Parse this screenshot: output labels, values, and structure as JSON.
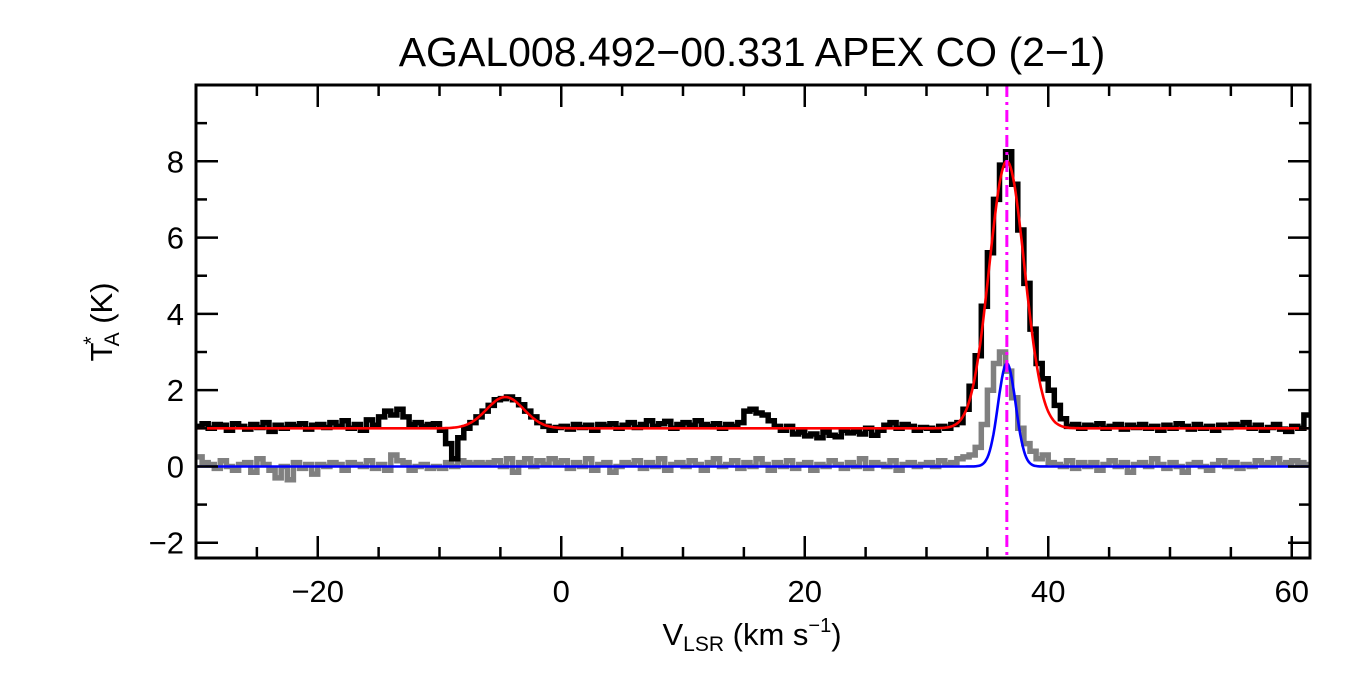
{
  "chart_data": {
    "type": "line",
    "title": "AGAL008.492−00.331   APEX CO (2−1)",
    "xlabel": {
      "main": "V",
      "sub": "LSR",
      "rest": " (km s",
      "sup": "−1",
      "close": ")"
    },
    "ylabel": {
      "main": "T",
      "sup": "*",
      "sub": "A",
      "rest": " (K)"
    },
    "xlim": [
      -30,
      61.5
    ],
    "ylim": [
      -2.4,
      10
    ],
    "x_major_ticks": [
      -20,
      0,
      20,
      40,
      60
    ],
    "x_tick_labels": [
      "−20",
      "0",
      "20",
      "40",
      "60"
    ],
    "x_minor_step": 5,
    "y_major_ticks": [
      -2,
      0,
      2,
      4,
      6,
      8
    ],
    "y_tick_labels": [
      "−2",
      "0",
      "2",
      "4",
      "6",
      "8"
    ],
    "y_minor_step": 1,
    "grid": false,
    "channel_start": -29.75,
    "channel_width": 0.5,
    "series": [
      {
        "style": "histogram",
        "color": "#000000",
        "values": [
          1.05,
          1.12,
          1.0,
          1.1,
          1.08,
          0.95,
          1.12,
          1.05,
          0.98,
          1.1,
          1.02,
          1.15,
          0.92,
          1.08,
          1.0,
          1.1,
          1.05,
          1.12,
          0.98,
          1.08,
          1.1,
          1.02,
          1.15,
          1.05,
          1.2,
          1.0,
          1.1,
          0.95,
          1.22,
          1.08,
          1.3,
          1.45,
          1.35,
          1.5,
          1.3,
          1.1,
          1.15,
          1.05,
          1.1,
          1.12,
          0.95,
          0.6,
          0.2,
          0.75,
          1.0,
          1.15,
          1.3,
          1.45,
          1.6,
          1.75,
          1.78,
          1.82,
          1.75,
          1.62,
          1.45,
          1.3,
          1.15,
          1.05,
          0.95,
          1.02,
          1.05,
          0.98,
          1.1,
          1.02,
          1.08,
          0.95,
          1.1,
          1.05,
          1.12,
          1.0,
          1.08,
          1.15,
          1.02,
          1.1,
          1.2,
          1.05,
          1.12,
          1.18,
          1.0,
          1.1,
          1.15,
          1.08,
          1.2,
          1.1,
          1.05,
          1.12,
          1.0,
          1.1,
          1.05,
          1.15,
          1.45,
          1.5,
          1.4,
          1.35,
          1.2,
          1.05,
          0.95,
          1.05,
          0.85,
          0.9,
          0.8,
          0.85,
          0.75,
          0.9,
          0.82,
          0.78,
          0.95,
          0.88,
          0.92,
          0.85,
          1.0,
          0.82,
          0.95,
          1.08,
          1.15,
          1.0,
          1.1,
          1.05,
          0.95,
          1.02,
          1.0,
          0.95,
          1.05,
          1.0,
          1.1,
          1.15,
          1.5,
          2.1,
          2.9,
          4.2,
          5.6,
          7.0,
          7.9,
          8.25,
          7.4,
          6.2,
          4.8,
          3.6,
          2.7,
          2.3,
          2.0,
          1.6,
          1.25,
          1.05,
          1.1,
          1.0,
          1.08,
          1.05,
          1.12,
          1.0,
          1.05,
          1.1,
          0.98,
          1.08,
          1.02,
          1.1,
          1.0,
          1.05,
          0.95,
          1.08,
          1.0,
          1.12,
          1.05,
          0.98,
          1.1,
          1.0,
          1.05,
          0.95,
          1.08,
          1.02,
          1.1,
          1.05,
          1.15,
          1.0,
          1.08,
          0.95,
          1.02,
          1.1,
          0.98,
          0.92,
          1.05,
          1.0,
          1.35
        ]
      },
      {
        "style": "histogram",
        "color": "#808080",
        "values": [
          0.25,
          0.1,
          0.05,
          -0.05,
          0.15,
          0.0,
          -0.1,
          0.05,
          0.1,
          -0.15,
          0.2,
          0.05,
          -0.1,
          -0.3,
          0.0,
          -0.35,
          0.1,
          -0.05,
          0.05,
          -0.2,
          0.05,
          0.0,
          0.1,
          0.05,
          -0.1,
          0.1,
          0.05,
          0.0,
          0.15,
          -0.05,
          0.05,
          -0.1,
          0.3,
          0.15,
          0.1,
          -0.1,
          0.0,
          0.05,
          -0.05,
          0.0,
          -0.05,
          0.1,
          0.0,
          0.15,
          0.1,
          0.05,
          0.1,
          0.05,
          0.1,
          0.15,
          0.0,
          0.2,
          -0.15,
          0.1,
          0.2,
          0.0,
          0.15,
          0.05,
          0.2,
          0.1,
          0.15,
          -0.05,
          0.1,
          0.0,
          0.2,
          -0.1,
          0.05,
          0.1,
          -0.15,
          0.0,
          0.1,
          0.05,
          0.15,
          -0.05,
          0.1,
          0.0,
          0.2,
          -0.1,
          0.05,
          0.1,
          0.0,
          0.15,
          0.05,
          -0.1,
          0.1,
          0.2,
          0.0,
          0.05,
          0.15,
          -0.05,
          0.1,
          0.0,
          0.2,
          0.05,
          -0.1,
          0.1,
          0.0,
          0.15,
          -0.05,
          0.05,
          0.1,
          -0.1,
          0.05,
          0.0,
          0.15,
          0.05,
          -0.05,
          0.1,
          0.0,
          0.2,
          -0.05,
          0.1,
          0.05,
          0.0,
          0.15,
          -0.1,
          0.05,
          0.1,
          0.0,
          0.05,
          0.1,
          0.0,
          0.15,
          0.05,
          0.1,
          0.2,
          0.25,
          0.3,
          0.5,
          1.1,
          2.0,
          2.7,
          3.0,
          2.5,
          1.8,
          1.0,
          0.6,
          0.4,
          0.2,
          0.3,
          0.1,
          0.05,
          0.0,
          0.15,
          -0.05,
          0.1,
          0.0,
          0.1,
          -0.1,
          0.05,
          0.15,
          0.0,
          0.1,
          -0.15,
          0.05,
          0.1,
          0.0,
          0.2,
          0.05,
          -0.05,
          0.1,
          0.0,
          -0.15,
          0.05,
          0.1,
          0.0,
          -0.1,
          0.05,
          0.15,
          0.0,
          0.1,
          -0.05,
          0.05,
          0.0,
          0.15,
          0.05,
          0.1,
          0.2,
          0.05,
          0.1,
          0.15,
          0.1,
          0.05
        ]
      }
    ],
    "fits": [
      {
        "color": "#ff0000",
        "baseline": 1.0,
        "components": [
          {
            "center": 36.6,
            "amplitude": 7.0,
            "fwhm": 3.4
          },
          {
            "center": -4.6,
            "amplitude": 0.82,
            "fwhm": 3.6
          }
        ]
      },
      {
        "color": "#0000ff",
        "baseline": 0.0,
        "components": [
          {
            "center": 36.6,
            "amplitude": 2.7,
            "fwhm": 1.7
          }
        ]
      }
    ],
    "vline": {
      "x": 36.6,
      "color": "#ff00ff",
      "style": "dash-dot"
    }
  }
}
